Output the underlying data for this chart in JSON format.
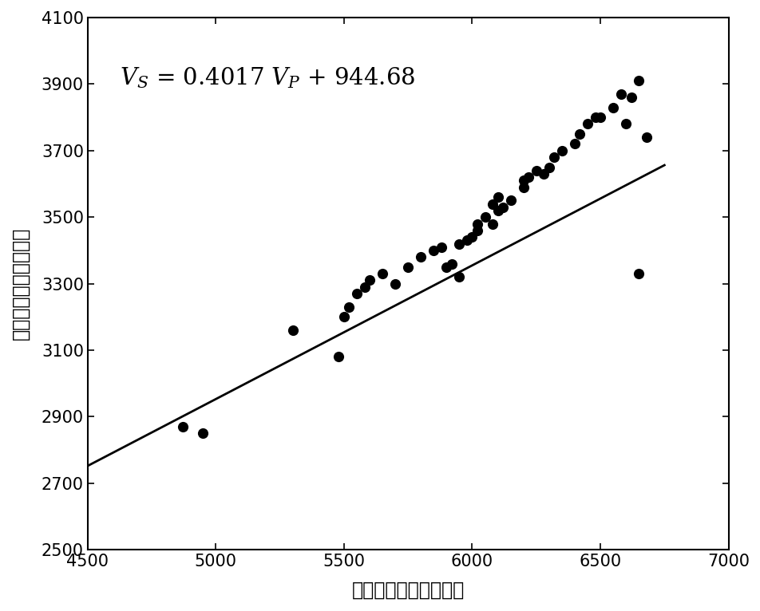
{
  "scatter_x": [
    4870,
    4950,
    5300,
    5480,
    5500,
    5520,
    5550,
    5580,
    5600,
    5650,
    5700,
    5750,
    5800,
    5850,
    5880,
    5900,
    5920,
    5950,
    5950,
    5980,
    6000,
    6020,
    6020,
    6050,
    6080,
    6080,
    6100,
    6100,
    6120,
    6150,
    6200,
    6200,
    6220,
    6250,
    6280,
    6300,
    6320,
    6350,
    6400,
    6420,
    6450,
    6480,
    6500,
    6550,
    6580,
    6600,
    6620,
    6650,
    6680,
    6650
  ],
  "scatter_y": [
    2870,
    2850,
    3160,
    3080,
    3200,
    3230,
    3270,
    3290,
    3310,
    3330,
    3300,
    3350,
    3380,
    3400,
    3410,
    3350,
    3360,
    3320,
    3420,
    3430,
    3440,
    3460,
    3480,
    3500,
    3480,
    3540,
    3520,
    3560,
    3530,
    3550,
    3590,
    3610,
    3620,
    3640,
    3630,
    3650,
    3680,
    3700,
    3720,
    3750,
    3780,
    3800,
    3800,
    3830,
    3870,
    3780,
    3860,
    3910,
    3740,
    3330
  ],
  "slope": 0.4017,
  "intercept": 944.68,
  "xlim": [
    4500,
    7000
  ],
  "ylim": [
    2500,
    4100
  ],
  "xticks": [
    4500,
    5000,
    5500,
    6000,
    6500,
    7000
  ],
  "yticks": [
    2500,
    2700,
    2900,
    3100,
    3300,
    3500,
    3700,
    3900,
    4100
  ],
  "xlabel": "横波速度／（米／秒）",
  "ylabel": "纵波速度／（米／秒）",
  "line_color": "#000000",
  "dot_color": "#000000",
  "background_color": "#ffffff",
  "dot_size": 90,
  "line_width": 2.0,
  "tick_fontsize": 15,
  "label_fontsize": 17,
  "equation_fontsize": 21
}
